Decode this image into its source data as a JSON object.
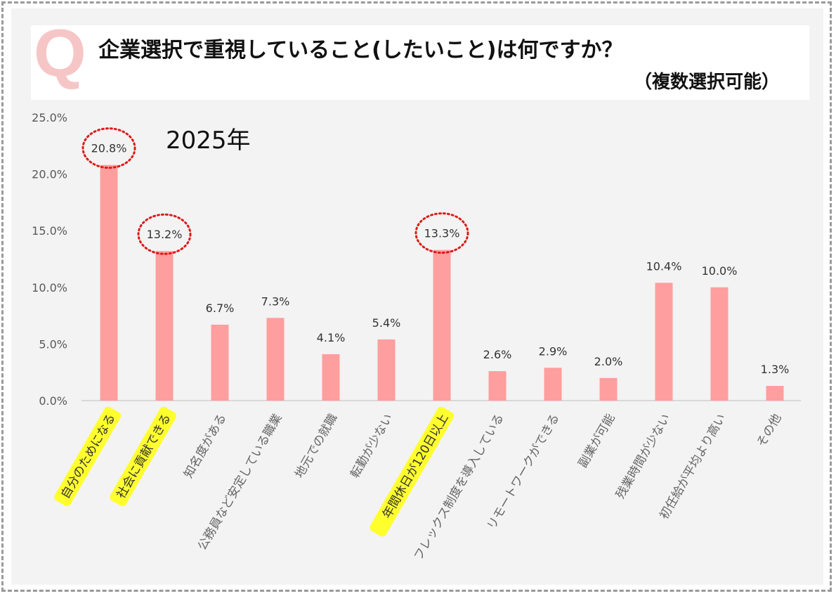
{
  "header": {
    "q_mark": "Q",
    "title": "企業選択で重視していること(したいこと)は何ですか？",
    "subtitle": "（複数選択可能）"
  },
  "year_label": "2025年",
  "chart_data": {
    "type": "bar",
    "title": "企業選択で重視していること(したいこと)は何ですか？",
    "subtitle": "（複数選択可能）",
    "year": "2025年",
    "categories": [
      "自分のためになる",
      "社会に貢献できる",
      "知名度がある",
      "公務員など安定している職業",
      "地元での就職",
      "転勤が少ない",
      "年間休日が120日以上",
      "フレックス制度を導入している",
      "リモートワークができる",
      "副業が可能",
      "残業時間が少ない",
      "初任給が平均より高い",
      "その他"
    ],
    "values": [
      20.8,
      13.2,
      6.7,
      7.3,
      4.1,
      5.4,
      13.3,
      2.6,
      2.9,
      2.0,
      10.4,
      10.0,
      1.3
    ],
    "value_labels": [
      "20.8%",
      "13.2%",
      "6.7%",
      "7.3%",
      "4.1%",
      "5.4%",
      "13.3%",
      "2.6%",
      "2.9%",
      "2.0%",
      "10.4%",
      "10.0%",
      "1.3%"
    ],
    "yticks": [
      "0.0%",
      "5.0%",
      "10.0%",
      "15.0%",
      "20.0%",
      "25.0%"
    ],
    "ytick_values": [
      0,
      5,
      10,
      15,
      20,
      25
    ],
    "ylim": [
      0,
      25
    ],
    "highlighted": [
      0,
      1,
      6
    ],
    "colors": {
      "bar": "#ff9e9e",
      "highlight_bg": "#ffff2e",
      "circle": "#e01818",
      "label_text": "#666666",
      "highlight_text": "#333333",
      "value_text": "#333333",
      "axis": "#d0d0d0"
    }
  }
}
